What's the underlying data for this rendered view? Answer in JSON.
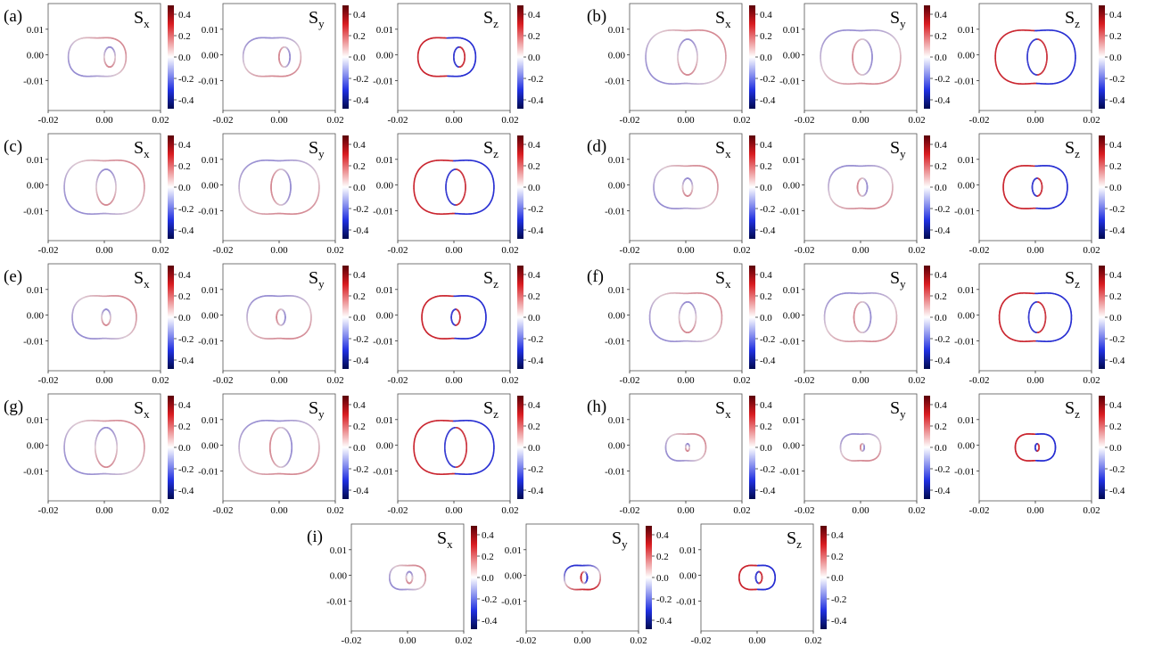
{
  "figure": {
    "colorbar": {
      "ticks": [
        "0.4",
        "0.2",
        "0.0",
        "-0.2",
        "-0.4"
      ],
      "colors": {
        "pos": "#b40018",
        "mid": "#ffffff",
        "neg": "#0a1aa0"
      }
    },
    "axis_ticks": {
      "x": [
        "-0.02",
        "0.00",
        "0.02"
      ],
      "y": [
        "0.01",
        "0.00",
        "-0.01"
      ]
    },
    "component_labels": {
      "sx": "x",
      "sy": "y",
      "sz": "z",
      "base": "S"
    },
    "panels": [
      {
        "label": "(a)",
        "size": 0.72,
        "inner": 0.35,
        "shape": "a"
      },
      {
        "label": "(b)",
        "size": 1.0,
        "inner": 0.45,
        "shape": "b"
      },
      {
        "label": "(c)",
        "size": 1.0,
        "inner": 0.45,
        "shape": "c"
      },
      {
        "label": "(d)",
        "size": 0.8,
        "inner": 0.28,
        "shape": "d"
      },
      {
        "label": "(e)",
        "size": 0.8,
        "inner": 0.25,
        "shape": "e"
      },
      {
        "label": "(f)",
        "size": 0.9,
        "inner": 0.43,
        "shape": "f"
      },
      {
        "label": "(g)",
        "size": 1.0,
        "inner": 0.5,
        "shape": "g"
      },
      {
        "label": "(h)",
        "size": 0.5,
        "inner": 0.18,
        "shape": "h"
      },
      {
        "label": "(i)",
        "size": 0.45,
        "inner": 0.32,
        "shape": "i"
      }
    ]
  }
}
